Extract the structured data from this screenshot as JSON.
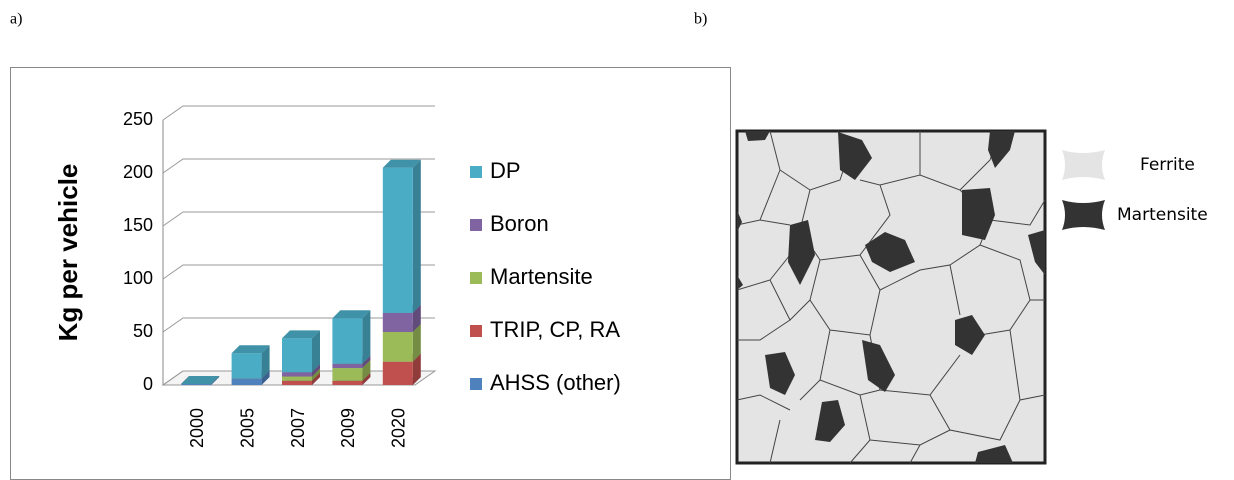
{
  "panel_labels": [
    "a)",
    "b)"
  ],
  "chart_data": {
    "type": "bar",
    "stacked": true,
    "three_d": true,
    "y_label": "Kg per vehicle",
    "categories": [
      "2000",
      "2005",
      "2007",
      "2009",
      "2020"
    ],
    "series": [
      {
        "name": "AHSS (other)",
        "color": "#4f81bd",
        "values": [
          1,
          6,
          0,
          0,
          0
        ]
      },
      {
        "name": "TRIP, CP, RA",
        "color": "#c0504d",
        "values": [
          0,
          0,
          4,
          4,
          22
        ]
      },
      {
        "name": "Martensite",
        "color": "#9bbb59",
        "values": [
          0,
          0,
          4,
          12,
          28
        ]
      },
      {
        "name": "Boron",
        "color": "#8064a2",
        "values": [
          0,
          0,
          4,
          4,
          18
        ]
      },
      {
        "name": "DP",
        "color": "#4bacc6",
        "values": [
          0,
          24,
          32,
          43,
          137
        ]
      }
    ],
    "ylim": [
      0,
      250
    ],
    "yticks": [
      0,
      50,
      100,
      150,
      200,
      250
    ],
    "grid": true,
    "legend": "right"
  },
  "diagram": {
    "legend": [
      {
        "label": "Ferrite",
        "color": "#e4e4e4"
      },
      {
        "label": "Martensite",
        "color": "#333333"
      }
    ]
  }
}
